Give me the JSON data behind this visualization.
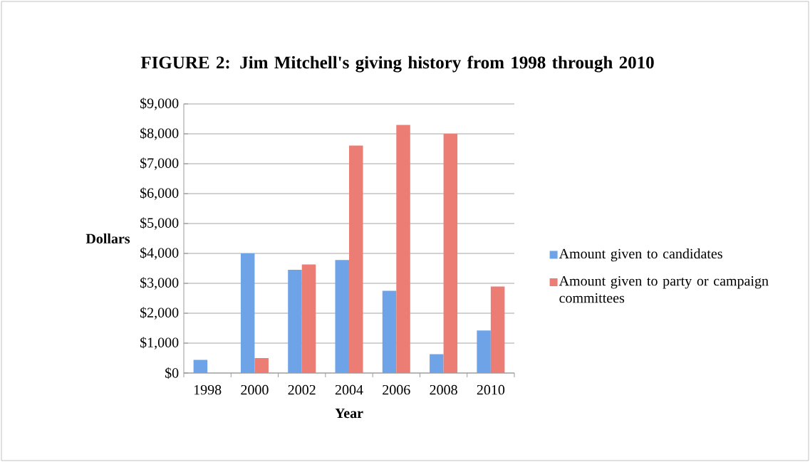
{
  "chart_data": {
    "type": "bar",
    "title": "FIGURE 2: Jim Mitchell's giving history from 1998 through 2010",
    "xlabel": "Year",
    "ylabel": "Dollars",
    "categories": [
      "1998",
      "2000",
      "2002",
      "2004",
      "2006",
      "2008",
      "2010"
    ],
    "series": [
      {
        "name": "Amount given to candidates",
        "color": "#6ea3e8",
        "values": [
          440,
          4000,
          3450,
          3780,
          2750,
          630,
          1420
        ]
      },
      {
        "name": "Amount given to party or campaign committees",
        "color": "#ec7d74",
        "values": [
          null,
          500,
          3630,
          7610,
          8300,
          8000,
          2890
        ]
      }
    ],
    "ylim": [
      0,
      9000
    ],
    "yticks": [
      {
        "value": 0,
        "label": "$0"
      },
      {
        "value": 1000,
        "label": "$1,000"
      },
      {
        "value": 2000,
        "label": "$2,000"
      },
      {
        "value": 3000,
        "label": "$3,000"
      },
      {
        "value": 4000,
        "label": "$4,000"
      },
      {
        "value": 5000,
        "label": "$5,000"
      },
      {
        "value": 6000,
        "label": "$6,000"
      },
      {
        "value": 7000,
        "label": "$7,000"
      },
      {
        "value": 8000,
        "label": "$8,000"
      },
      {
        "value": 9000,
        "label": "$9,000"
      }
    ],
    "grid": "y",
    "legend": "right"
  }
}
